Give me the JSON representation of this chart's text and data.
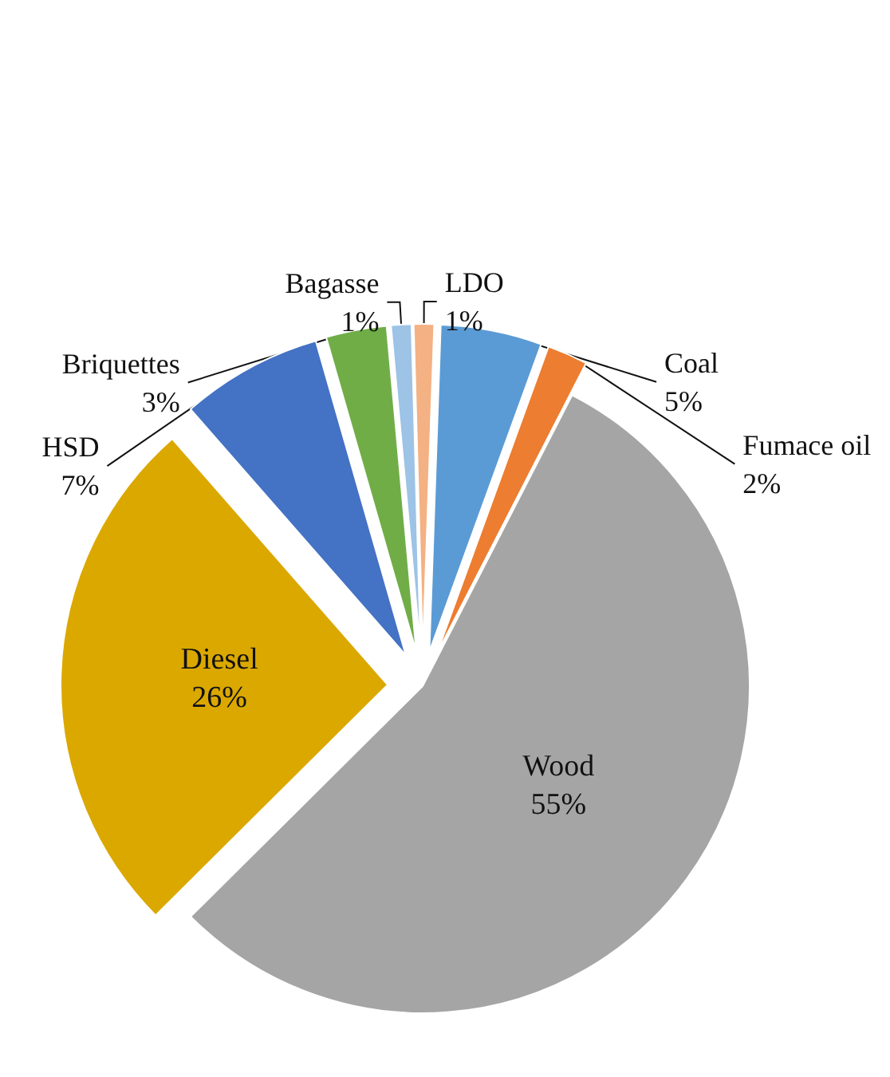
{
  "chart_data": {
    "type": "pie",
    "categories": [
      "Coal",
      "Fumace oil",
      "Wood",
      "Diesel",
      "HSD",
      "Briquettes",
      "Bagasse",
      "LDO"
    ],
    "values": [
      5,
      2,
      55,
      26,
      7,
      3,
      1,
      1
    ],
    "value_labels": [
      "5%",
      "2%",
      "55%",
      "26%",
      "7%",
      "3%",
      "1%",
      "1%"
    ],
    "colors": [
      "#5b9bd5",
      "#ed7d31",
      "#a5a5a5",
      "#dba800",
      "#4472c4",
      "#70ad47",
      "#9dc3e6",
      "#f4b183"
    ]
  }
}
